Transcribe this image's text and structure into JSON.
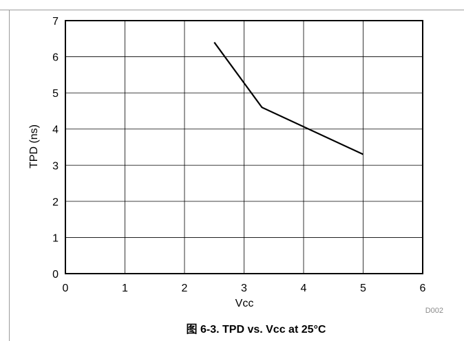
{
  "chart_data": {
    "type": "line",
    "title": "",
    "xlabel": "Vcc",
    "ylabel": "TPD (ns)",
    "xlim": [
      0,
      6
    ],
    "ylim": [
      0,
      7
    ],
    "x_ticks": [
      "0",
      "1",
      "2",
      "3",
      "4",
      "5",
      "6"
    ],
    "y_ticks": [
      "0",
      "1",
      "2",
      "3",
      "4",
      "5",
      "6",
      "7"
    ],
    "grid": true,
    "legend": "none",
    "series": [
      {
        "x": [
          2.5,
          3.3,
          5.0
        ],
        "y": [
          6.4,
          4.6,
          3.3
        ]
      }
    ],
    "line_color": "#000000"
  },
  "figure_code": "D002",
  "caption": "图 6-3. TPD vs. Vcc at 25°C"
}
